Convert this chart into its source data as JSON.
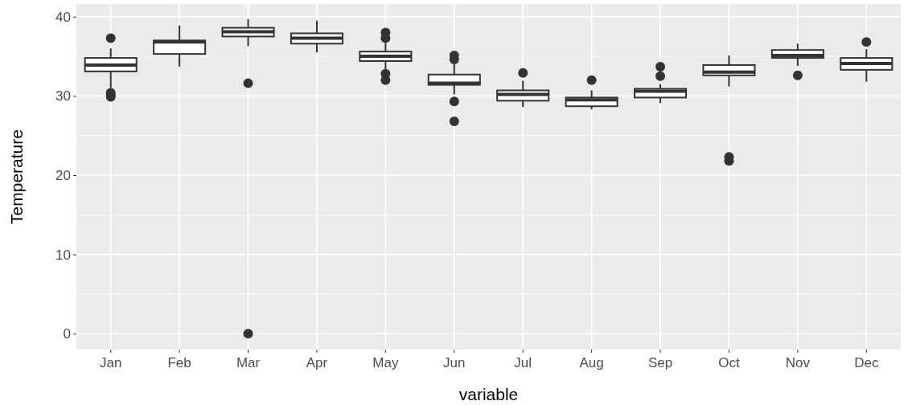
{
  "chart_data": {
    "type": "box",
    "xlabel": "variable",
    "ylabel": "Temperature",
    "categories": [
      "Jan",
      "Feb",
      "Mar",
      "Apr",
      "May",
      "Jun",
      "Jul",
      "Aug",
      "Sep",
      "Oct",
      "Nov",
      "Dec"
    ],
    "ylim": [
      -2,
      41.6
    ],
    "yticks": [
      0,
      10,
      20,
      30,
      40
    ],
    "grid": true,
    "color": "#333333",
    "boxes": [
      {
        "low": 31.0,
        "q1": 33.1,
        "median": 33.9,
        "q3": 34.8,
        "high": 36.0,
        "outliers": [
          37.3,
          30.4,
          30.1,
          29.9
        ]
      },
      {
        "low": 33.7,
        "q1": 35.3,
        "median": 36.8,
        "q3": 37.0,
        "high": 38.9
      },
      {
        "low": 36.3,
        "q1": 37.5,
        "median": 38.1,
        "q3": 38.6,
        "high": 39.7,
        "outliers": [
          31.6,
          0
        ]
      },
      {
        "low": 35.5,
        "q1": 36.6,
        "median": 37.3,
        "q3": 37.9,
        "high": 39.5
      },
      {
        "low": 33.2,
        "q1": 34.4,
        "median": 35.0,
        "q3": 35.6,
        "high": 36.7,
        "outliers": [
          38.0,
          37.3,
          32.8,
          32.0
        ]
      },
      {
        "low": 30.2,
        "q1": 31.4,
        "median": 31.6,
        "q3": 32.7,
        "high": 34.0,
        "outliers": [
          35.1,
          34.6,
          29.3,
          26.8
        ]
      },
      {
        "low": 28.6,
        "q1": 29.4,
        "median": 30.2,
        "q3": 30.7,
        "high": 31.9,
        "outliers": [
          32.9
        ]
      },
      {
        "low": 28.3,
        "q1": 28.7,
        "median": 29.5,
        "q3": 29.8,
        "high": 30.7,
        "outliers": [
          32.0
        ]
      },
      {
        "low": 29.1,
        "q1": 29.8,
        "median": 30.6,
        "q3": 30.9,
        "high": 31.5,
        "outliers": [
          33.7,
          32.5
        ]
      },
      {
        "low": 31.2,
        "q1": 32.6,
        "median": 33.0,
        "q3": 33.9,
        "high": 35.1,
        "outliers": [
          22.3,
          21.8
        ]
      },
      {
        "low": 33.8,
        "q1": 34.8,
        "median": 35.1,
        "q3": 35.8,
        "high": 36.6,
        "outliers": [
          32.6
        ]
      },
      {
        "low": 31.8,
        "q1": 33.3,
        "median": 34.1,
        "q3": 34.8,
        "high": 35.9,
        "outliers": [
          36.8
        ]
      }
    ]
  }
}
